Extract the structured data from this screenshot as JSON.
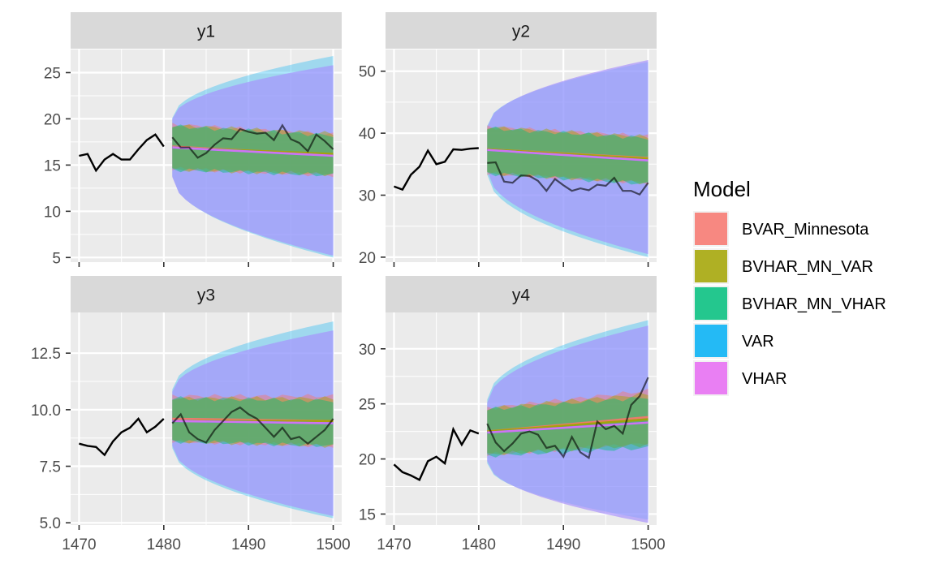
{
  "colors": {
    "panel_bg": "#EBEBEB",
    "strip_bg": "#D9D9D9",
    "grid": "#FFFFFF",
    "axis_text": "#4D4D4D",
    "observed_line": "#000000",
    "fanchart_outer": "#9999FF"
  },
  "legend": {
    "title": "Model",
    "position": "right",
    "items": [
      {
        "label": "BVAR_Minnesota",
        "color": "#F8766D"
      },
      {
        "label": "BVHAR_MN_VAR",
        "color": "#A3A500"
      },
      {
        "label": "BVHAR_MN_VHAR",
        "color": "#00BF7D"
      },
      {
        "label": "VAR",
        "color": "#00B0F6"
      },
      {
        "label": "VHAR",
        "color": "#E76BF3"
      }
    ]
  },
  "chart_data": [
    {
      "type": "area",
      "facet": "y1",
      "grid": true,
      "xlim": [
        1469,
        1501
      ],
      "ylim": [
        4.5,
        27.5
      ],
      "x_ticks": [
        1470,
        1480,
        1490,
        1500
      ],
      "y_ticks": [
        5,
        10,
        15,
        20,
        25
      ],
      "y_tick_labels": [
        "5",
        "10",
        "15",
        "20",
        "25"
      ],
      "observed_x": [
        1470,
        1471,
        1472,
        1473,
        1474,
        1475,
        1476,
        1477,
        1478,
        1479,
        1480
      ],
      "observed_y": [
        16.0,
        16.2,
        14.4,
        15.6,
        16.2,
        15.6,
        15.6,
        16.7,
        17.7,
        18.3,
        17.0
      ],
      "holdout_x": [
        1481,
        1482,
        1483,
        1484,
        1485,
        1486,
        1487,
        1488,
        1489,
        1490,
        1491,
        1492,
        1493,
        1494,
        1495,
        1496,
        1497,
        1498,
        1499,
        1500
      ],
      "holdout_y": [
        18.0,
        16.9,
        16.9,
        15.8,
        16.3,
        17.2,
        17.9,
        17.8,
        18.9,
        18.6,
        18.4,
        18.5,
        17.7,
        19.3,
        17.8,
        17.4,
        16.5,
        18.3,
        17.6,
        16.7
      ],
      "forecast_x": [
        1481,
        1500
      ],
      "series": [
        {
          "name": "BVAR_Minnesota",
          "mean": [
            17.0,
            16.1
          ],
          "lower": [
            14.6,
            13.9
          ],
          "upper": [
            19.4,
            18.3
          ],
          "wide_lower": [
            13.7,
            5.2
          ],
          "wide_upper": [
            20.4,
            25.8
          ]
        },
        {
          "name": "BVHAR_MN_VAR",
          "mean": [
            16.9,
            16.2
          ],
          "lower": [
            14.5,
            14.0
          ],
          "upper": [
            19.3,
            18.4
          ],
          "wide_lower": [
            13.7,
            5.2
          ],
          "wide_upper": [
            20.4,
            25.8
          ]
        },
        {
          "name": "BVHAR_MN_VHAR",
          "mean": [
            16.9,
            16.0
          ],
          "lower": [
            14.5,
            13.9
          ],
          "upper": [
            19.2,
            18.2
          ],
          "wide_lower": [
            13.7,
            5.2
          ],
          "wide_upper": [
            20.4,
            25.8
          ]
        },
        {
          "name": "VAR",
          "mean": [
            16.9,
            16.0
          ],
          "lower": [
            13.8,
            5.0
          ],
          "upper": [
            20.1,
            26.8
          ],
          "wide_lower": [
            13.7,
            5.0
          ],
          "wide_upper": [
            20.4,
            26.8
          ]
        },
        {
          "name": "VHAR",
          "mean": [
            16.9,
            16.0
          ],
          "lower": [
            13.7,
            5.2
          ],
          "upper": [
            20.0,
            25.8
          ],
          "wide_lower": [
            13.7,
            5.2
          ],
          "wide_upper": [
            20.0,
            25.8
          ]
        }
      ]
    },
    {
      "type": "area",
      "facet": "y2",
      "grid": true,
      "xlim": [
        1469,
        1501
      ],
      "ylim": [
        19.2,
        53.5
      ],
      "x_ticks": [
        1470,
        1480,
        1490,
        1500
      ],
      "y_ticks": [
        20,
        30,
        40,
        50
      ],
      "y_tick_labels": [
        "20",
        "30",
        "40",
        "50"
      ],
      "observed_x": [
        1470,
        1471,
        1472,
        1473,
        1474,
        1475,
        1476,
        1477,
        1478,
        1479,
        1480
      ],
      "observed_y": [
        31.4,
        30.9,
        33.3,
        34.6,
        37.2,
        35.0,
        35.4,
        37.4,
        37.3,
        37.5,
        37.6
      ],
      "holdout_x": [
        1481,
        1482,
        1483,
        1484,
        1485,
        1486,
        1487,
        1488,
        1489,
        1490,
        1491,
        1492,
        1493,
        1494,
        1495,
        1496,
        1497,
        1498,
        1499,
        1500
      ],
      "holdout_y": [
        35.2,
        35.3,
        32.2,
        32.0,
        33.2,
        33.1,
        32.3,
        30.7,
        32.6,
        31.6,
        30.7,
        31.1,
        30.8,
        31.7,
        31.5,
        32.8,
        30.7,
        30.7,
        30.1,
        32.0
      ],
      "forecast_x": [
        1481,
        1500
      ],
      "series": [
        {
          "name": "BVAR_Minnesota",
          "mean": [
            37.4,
            36.0
          ],
          "lower": [
            33.5,
            32.0
          ],
          "upper": [
            41.0,
            39.5
          ],
          "wide_lower": [
            34.0,
            20.5
          ],
          "wide_upper": [
            41.2,
            51.8
          ]
        },
        {
          "name": "BVHAR_MN_VAR",
          "mean": [
            37.4,
            35.9
          ],
          "lower": [
            33.5,
            32.0
          ],
          "upper": [
            41.0,
            39.4
          ],
          "wide_lower": [
            34.0,
            20.5
          ],
          "wide_upper": [
            41.2,
            51.8
          ]
        },
        {
          "name": "BVHAR_MN_VHAR",
          "mean": [
            37.3,
            35.6
          ],
          "lower": [
            33.5,
            31.8
          ],
          "upper": [
            40.8,
            39.2
          ],
          "wide_lower": [
            34.0,
            20.5
          ],
          "wide_upper": [
            41.2,
            51.8
          ]
        },
        {
          "name": "VAR",
          "mean": [
            37.3,
            35.6
          ],
          "lower": [
            33.3,
            20.0
          ],
          "upper": [
            41.2,
            51.5
          ],
          "wide_lower": [
            33.3,
            20.0
          ],
          "wide_upper": [
            41.2,
            51.8
          ]
        },
        {
          "name": "VHAR",
          "mean": [
            37.3,
            35.6
          ],
          "lower": [
            34.0,
            20.5
          ],
          "upper": [
            41.0,
            51.8
          ],
          "wide_lower": [
            34.0,
            20.5
          ],
          "wide_upper": [
            41.0,
            51.8
          ]
        }
      ]
    },
    {
      "type": "area",
      "facet": "y3",
      "grid": true,
      "xlim": [
        1469,
        1501
      ],
      "ylim": [
        4.9,
        14.3
      ],
      "x_ticks": [
        1470,
        1480,
        1490,
        1500
      ],
      "y_ticks": [
        5.0,
        7.5,
        10.0,
        12.5
      ],
      "y_tick_labels": [
        "5.0",
        "7.5",
        "10.0",
        "12.5"
      ],
      "observed_x": [
        1470,
        1471,
        1472,
        1473,
        1474,
        1475,
        1476,
        1477,
        1478,
        1479,
        1480
      ],
      "observed_y": [
        8.5,
        8.4,
        8.35,
        8.0,
        8.6,
        9.0,
        9.2,
        9.6,
        9.0,
        9.25,
        9.6
      ],
      "holdout_x": [
        1481,
        1482,
        1483,
        1484,
        1485,
        1486,
        1487,
        1488,
        1489,
        1490,
        1491,
        1492,
        1493,
        1494,
        1495,
        1496,
        1497,
        1498,
        1499,
        1500
      ],
      "holdout_y": [
        9.4,
        9.8,
        9.0,
        8.7,
        8.55,
        9.1,
        9.5,
        9.9,
        10.1,
        9.8,
        9.6,
        9.2,
        8.8,
        9.2,
        8.7,
        8.8,
        8.5,
        8.8,
        9.1,
        9.6
      ],
      "forecast_x": [
        1481,
        1500
      ],
      "series": [
        {
          "name": "BVAR_Minnesota",
          "mean": [
            9.6,
            9.5
          ],
          "lower": [
            8.6,
            8.4
          ],
          "upper": [
            10.6,
            10.6
          ],
          "wide_lower": [
            8.4,
            5.3
          ],
          "wide_upper": [
            10.8,
            13.5
          ]
        },
        {
          "name": "BVHAR_MN_VAR",
          "mean": [
            9.5,
            9.5
          ],
          "lower": [
            8.6,
            8.4
          ],
          "upper": [
            10.5,
            10.5
          ],
          "wide_lower": [
            8.4,
            5.3
          ],
          "wide_upper": [
            10.8,
            13.5
          ]
        },
        {
          "name": "BVHAR_MN_VHAR",
          "mean": [
            9.5,
            9.4
          ],
          "lower": [
            8.6,
            8.4
          ],
          "upper": [
            10.5,
            10.4
          ],
          "wide_lower": [
            8.4,
            5.3
          ],
          "wide_upper": [
            10.8,
            13.5
          ]
        },
        {
          "name": "VAR",
          "mean": [
            9.5,
            9.4
          ],
          "lower": [
            8.3,
            5.2
          ],
          "upper": [
            10.9,
            13.9
          ],
          "wide_lower": [
            8.3,
            5.2
          ],
          "wide_upper": [
            10.9,
            13.9
          ]
        },
        {
          "name": "VHAR",
          "mean": [
            9.5,
            9.4
          ],
          "lower": [
            8.4,
            5.3
          ],
          "upper": [
            10.8,
            13.5
          ],
          "wide_lower": [
            8.4,
            5.3
          ],
          "wide_upper": [
            10.8,
            13.5
          ]
        }
      ]
    },
    {
      "type": "area",
      "facet": "y4",
      "grid": true,
      "xlim": [
        1469,
        1501
      ],
      "ylim": [
        14.0,
        33.3
      ],
      "x_ticks": [
        1470,
        1480,
        1490,
        1500
      ],
      "y_ticks": [
        15,
        20,
        25,
        30
      ],
      "y_tick_labels": [
        "15",
        "20",
        "25",
        "30"
      ],
      "observed_x": [
        1470,
        1471,
        1472,
        1473,
        1474,
        1475,
        1476,
        1477,
        1478,
        1479,
        1480
      ],
      "observed_y": [
        19.5,
        18.8,
        18.5,
        18.1,
        19.8,
        20.2,
        19.6,
        22.7,
        21.3,
        22.6,
        22.3
      ],
      "holdout_x": [
        1481,
        1482,
        1483,
        1484,
        1485,
        1486,
        1487,
        1488,
        1489,
        1490,
        1491,
        1492,
        1493,
        1494,
        1495,
        1496,
        1497,
        1498,
        1499,
        1500
      ],
      "holdout_y": [
        23.2,
        21.5,
        20.7,
        21.4,
        22.3,
        22.5,
        22.2,
        21.0,
        21.2,
        20.2,
        22.0,
        20.6,
        20.1,
        23.4,
        22.7,
        23.0,
        22.3,
        24.9,
        25.7,
        27.4
      ],
      "forecast_x": [
        1481,
        1500
      ],
      "series": [
        {
          "name": "BVAR_Minnesota",
          "mean": [
            22.5,
            23.8
          ],
          "lower": [
            20.4,
            21.4
          ],
          "upper": [
            24.6,
            26.2
          ],
          "wide_lower": [
            19.8,
            14.5
          ],
          "wide_upper": [
            25.1,
            32.1
          ]
        },
        {
          "name": "BVHAR_MN_VAR",
          "mean": [
            22.5,
            23.6
          ],
          "lower": [
            20.4,
            21.3
          ],
          "upper": [
            24.6,
            25.9
          ],
          "wide_lower": [
            19.8,
            14.5
          ],
          "wide_upper": [
            25.1,
            32.1
          ]
        },
        {
          "name": "BVHAR_MN_VHAR",
          "mean": [
            22.4,
            23.3
          ],
          "lower": [
            20.3,
            21.0
          ],
          "upper": [
            24.5,
            25.6
          ],
          "wide_lower": [
            19.8,
            14.5
          ],
          "wide_upper": [
            25.1,
            32.1
          ]
        },
        {
          "name": "VAR",
          "mean": [
            22.4,
            23.3
          ],
          "lower": [
            19.6,
            14.5
          ],
          "upper": [
            25.4,
            32.6
          ],
          "wide_lower": [
            19.6,
            14.5
          ],
          "wide_upper": [
            25.4,
            32.6
          ]
        },
        {
          "name": "VHAR",
          "mean": [
            22.4,
            23.3
          ],
          "lower": [
            19.8,
            14.2
          ],
          "upper": [
            25.1,
            32.1
          ],
          "wide_lower": [
            19.8,
            14.2
          ],
          "wide_upper": [
            25.1,
            32.1
          ]
        }
      ]
    }
  ]
}
